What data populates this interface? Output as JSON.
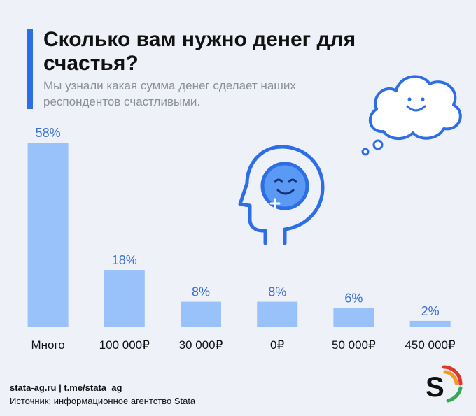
{
  "header": {
    "title": "Сколько вам нужно денег для счастья?",
    "subtitle": "Мы узнали какая сумма денег сделает наших респондентов счастливыми."
  },
  "chart_data": {
    "type": "bar",
    "categories": [
      "Много",
      "100 000₽",
      "30 000₽",
      "0₽",
      "50 000₽",
      "450 000₽"
    ],
    "values": [
      58,
      18,
      8,
      8,
      6,
      2
    ],
    "data_labels": [
      "58%",
      "18%",
      "8%",
      "8%",
      "6%",
      "2%"
    ],
    "title": "Сколько вам нужно денег для счастья?",
    "xlabel": "",
    "ylabel": "",
    "ylim": [
      0,
      58
    ],
    "grid": false,
    "bar_color": "#99c2fb",
    "label_color": "#3a6fd1"
  },
  "colors": {
    "accent": "#2d6ee6",
    "icon_blue": "#2d6ee6",
    "face_fill": "#5a9af5"
  },
  "icons": [
    "head-profile-icon",
    "smiley-face-icon",
    "thought-cloud-icon",
    "stata-logo-icon"
  ],
  "footer": {
    "site": "stata-ag.ru | t.me/stata_ag",
    "source": "Источник: информационное агентство Stata"
  },
  "logo": {
    "letter": "S"
  }
}
